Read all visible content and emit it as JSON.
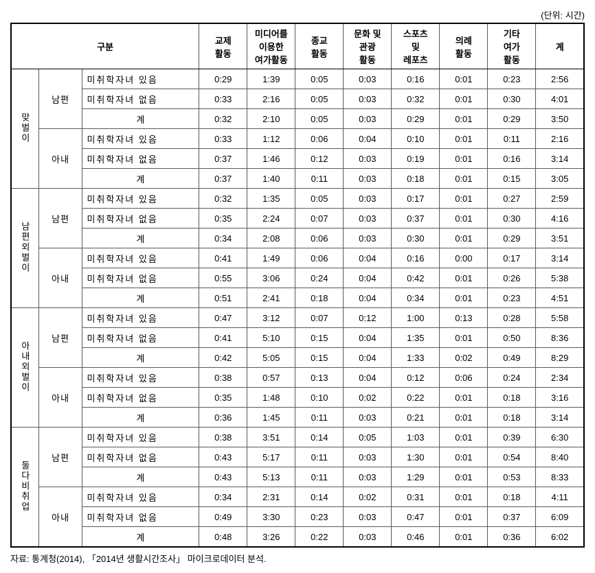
{
  "unit_label": "(단위: 시간)",
  "headers": {
    "group": "구분",
    "cols": [
      "교제\n활동",
      "미디어를\n이용한\n여가활동",
      "종교\n활동",
      "문화 및\n관광\n활동",
      "스포츠\n및\n레포츠",
      "의례\n활동",
      "기타\n여가\n활동",
      "계"
    ]
  },
  "row_categories": [
    "미취학자녀  있음",
    "미취학자녀  없음",
    "계"
  ],
  "spouse_labels": [
    "남편",
    "아내"
  ],
  "group_labels": [
    "맞벌이",
    "남편외벌이",
    "아내외벌이",
    "둘다비취업"
  ],
  "data": {
    "g0": {
      "s0": [
        [
          "0:29",
          "1:39",
          "0:05",
          "0:03",
          "0:16",
          "0:01",
          "0:23",
          "2:56"
        ],
        [
          "0:33",
          "2:16",
          "0:05",
          "0:03",
          "0:32",
          "0:01",
          "0:30",
          "4:01"
        ],
        [
          "0:32",
          "2:10",
          "0:05",
          "0:03",
          "0:29",
          "0:01",
          "0:29",
          "3:50"
        ]
      ],
      "s1": [
        [
          "0:33",
          "1:12",
          "0:06",
          "0:04",
          "0:10",
          "0:01",
          "0:11",
          "2:16"
        ],
        [
          "0:37",
          "1:46",
          "0:12",
          "0:03",
          "0:19",
          "0:01",
          "0:16",
          "3:14"
        ],
        [
          "0:37",
          "1:40",
          "0:11",
          "0:03",
          "0:18",
          "0:01",
          "0:15",
          "3:05"
        ]
      ]
    },
    "g1": {
      "s0": [
        [
          "0:32",
          "1:35",
          "0:05",
          "0:03",
          "0:17",
          "0:01",
          "0:27",
          "2:59"
        ],
        [
          "0:35",
          "2:24",
          "0:07",
          "0:03",
          "0:37",
          "0:01",
          "0:30",
          "4:16"
        ],
        [
          "0:34",
          "2:08",
          "0:06",
          "0:03",
          "0:30",
          "0:01",
          "0:29",
          "3:51"
        ]
      ],
      "s1": [
        [
          "0:41",
          "1:49",
          "0:06",
          "0:04",
          "0:16",
          "0:00",
          "0:17",
          "3:14"
        ],
        [
          "0:55",
          "3:06",
          "0:24",
          "0:04",
          "0:42",
          "0:01",
          "0:26",
          "5:38"
        ],
        [
          "0:51",
          "2:41",
          "0:18",
          "0:04",
          "0:34",
          "0:01",
          "0:23",
          "4:51"
        ]
      ]
    },
    "g2": {
      "s0": [
        [
          "0:47",
          "3:12",
          "0:07",
          "0:12",
          "1:00",
          "0:13",
          "0:28",
          "5:58"
        ],
        [
          "0:41",
          "5:10",
          "0:15",
          "0:04",
          "1:35",
          "0:01",
          "0:50",
          "8:36"
        ],
        [
          "0:42",
          "5:05",
          "0:15",
          "0:04",
          "1:33",
          "0:02",
          "0:49",
          "8:29"
        ]
      ],
      "s1": [
        [
          "0:38",
          "0:57",
          "0:13",
          "0:04",
          "0:12",
          "0:06",
          "0:24",
          "2:34"
        ],
        [
          "0:35",
          "1:48",
          "0:10",
          "0:02",
          "0:22",
          "0:01",
          "0:18",
          "3:16"
        ],
        [
          "0:36",
          "1:45",
          "0:11",
          "0:03",
          "0:21",
          "0:01",
          "0:18",
          "3:14"
        ]
      ]
    },
    "g3": {
      "s0": [
        [
          "0:38",
          "3:51",
          "0:14",
          "0:05",
          "1:03",
          "0:01",
          "0:39",
          "6:30"
        ],
        [
          "0:43",
          "5:17",
          "0:11",
          "0:03",
          "1:30",
          "0:01",
          "0:54",
          "8:40"
        ],
        [
          "0:43",
          "5:13",
          "0:11",
          "0:03",
          "1:29",
          "0:01",
          "0:53",
          "8:33"
        ]
      ],
      "s1": [
        [
          "0:34",
          "2:31",
          "0:14",
          "0:02",
          "0:31",
          "0:01",
          "0:18",
          "4:11"
        ],
        [
          "0:49",
          "3:30",
          "0:23",
          "0:03",
          "0:47",
          "0:01",
          "0:37",
          "6:09"
        ],
        [
          "0:48",
          "3:26",
          "0:22",
          "0:03",
          "0:46",
          "0:01",
          "0:36",
          "6:02"
        ]
      ]
    }
  },
  "source": "자료: 통계청(2014), 「2014년 생활시간조사」 마이크로데이터 분석."
}
